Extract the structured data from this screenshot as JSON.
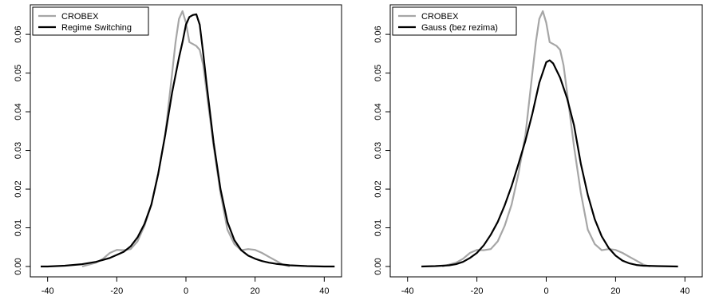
{
  "chart_data": [
    {
      "type": "line",
      "title": "",
      "xlabel": "",
      "ylabel": "",
      "xlim": [
        -45,
        45
      ],
      "ylim": [
        0,
        0.066
      ],
      "xticks": [
        -40,
        -20,
        0,
        20,
        40
      ],
      "yticks": [
        0.0,
        0.01,
        0.02,
        0.03,
        0.04,
        0.05,
        0.06
      ],
      "yticklabels": [
        "0.00",
        "0.01",
        "0.02",
        "0.03",
        "0.04",
        "0.05",
        "0.06"
      ],
      "xticklabels": [
        "-40",
        "-20",
        "0",
        "20",
        "40"
      ],
      "grid": false,
      "legend": "top-left",
      "series": [
        {
          "name": "CROBEX",
          "color": "#a6a6a6",
          "x": [
            -30,
            -28,
            -26,
            -24,
            -22,
            -20,
            -18,
            -16,
            -14,
            -12,
            -10,
            -8,
            -6,
            -4,
            -3,
            -2,
            -1,
            0,
            1,
            2,
            3,
            4,
            5,
            6,
            8,
            10,
            12,
            14,
            16,
            18,
            20,
            22,
            24,
            26,
            28,
            30
          ],
          "y": [
            0.0,
            0.0005,
            0.001,
            0.002,
            0.0035,
            0.0043,
            0.0042,
            0.0045,
            0.0065,
            0.0105,
            0.016,
            0.024,
            0.034,
            0.05,
            0.058,
            0.064,
            0.066,
            0.063,
            0.058,
            0.0575,
            0.057,
            0.056,
            0.052,
            0.045,
            0.031,
            0.019,
            0.0095,
            0.0058,
            0.0042,
            0.0045,
            0.0043,
            0.0035,
            0.0025,
            0.0015,
            0.0005,
            0.0
          ]
        },
        {
          "name": "Regime Switching",
          "color": "#000000",
          "x": [
            -42,
            -40,
            -35,
            -30,
            -26,
            -22,
            -20,
            -18,
            -16,
            -14,
            -12,
            -10,
            -8,
            -6,
            -4,
            -2,
            -1,
            0,
            1,
            2,
            3,
            4,
            5,
            6,
            8,
            10,
            12,
            14,
            16,
            18,
            20,
            22,
            24,
            26,
            30,
            35,
            40,
            43
          ],
          "y": [
            0.0,
            0.0,
            0.0002,
            0.0006,
            0.0012,
            0.0022,
            0.003,
            0.0038,
            0.0052,
            0.0075,
            0.011,
            0.016,
            0.024,
            0.034,
            0.045,
            0.054,
            0.058,
            0.0625,
            0.0645,
            0.065,
            0.0652,
            0.0625,
            0.055,
            0.047,
            0.032,
            0.02,
            0.0115,
            0.0068,
            0.0042,
            0.0028,
            0.002,
            0.0014,
            0.001,
            0.0007,
            0.0003,
            0.0001,
            0.0,
            0.0
          ]
        }
      ]
    },
    {
      "type": "line",
      "title": "",
      "xlabel": "",
      "ylabel": "",
      "xlim": [
        -45,
        45
      ],
      "ylim": [
        0,
        0.066
      ],
      "xticks": [
        -40,
        -20,
        0,
        20,
        40
      ],
      "yticks": [
        0.0,
        0.01,
        0.02,
        0.03,
        0.04,
        0.05,
        0.06
      ],
      "yticklabels": [
        "0.00",
        "0.01",
        "0.02",
        "0.03",
        "0.04",
        "0.05",
        "0.06"
      ],
      "xticklabels": [
        "-40",
        "-20",
        "0",
        "20",
        "40"
      ],
      "grid": false,
      "legend": "top-left",
      "series": [
        {
          "name": "CROBEX",
          "color": "#a6a6a6",
          "x": [
            -30,
            -28,
            -26,
            -24,
            -22,
            -20,
            -18,
            -16,
            -14,
            -12,
            -10,
            -8,
            -6,
            -4,
            -3,
            -2,
            -1,
            0,
            1,
            2,
            3,
            4,
            5,
            6,
            8,
            10,
            12,
            14,
            16,
            18,
            20,
            22,
            24,
            26,
            28,
            30
          ],
          "y": [
            0.0,
            0.0005,
            0.001,
            0.002,
            0.0035,
            0.0043,
            0.0042,
            0.0045,
            0.0065,
            0.0105,
            0.016,
            0.024,
            0.034,
            0.05,
            0.058,
            0.064,
            0.066,
            0.063,
            0.058,
            0.0575,
            0.057,
            0.056,
            0.052,
            0.045,
            0.031,
            0.019,
            0.0095,
            0.0058,
            0.0042,
            0.0045,
            0.0043,
            0.0035,
            0.0025,
            0.0015,
            0.0005,
            0.0
          ]
        },
        {
          "name": "Gauss (bez rezima)",
          "color": "#000000",
          "x": [
            -36,
            -32,
            -28,
            -26,
            -24,
            -22,
            -20,
            -18,
            -16,
            -14,
            -12,
            -10,
            -8,
            -6,
            -4,
            -2,
            0,
            1,
            2,
            4,
            6,
            8,
            10,
            12,
            14,
            16,
            18,
            20,
            22,
            24,
            26,
            28,
            32,
            38
          ],
          "y": [
            0.0,
            0.0001,
            0.0003,
            0.0006,
            0.0012,
            0.0022,
            0.0035,
            0.0055,
            0.0082,
            0.0115,
            0.0158,
            0.0208,
            0.0265,
            0.0325,
            0.0395,
            0.0475,
            0.0528,
            0.0533,
            0.0525,
            0.0488,
            0.0435,
            0.0365,
            0.0265,
            0.0185,
            0.0122,
            0.0078,
            0.0048,
            0.0028,
            0.0015,
            0.0008,
            0.0004,
            0.0002,
            0.0001,
            0.0
          ]
        }
      ]
    }
  ]
}
